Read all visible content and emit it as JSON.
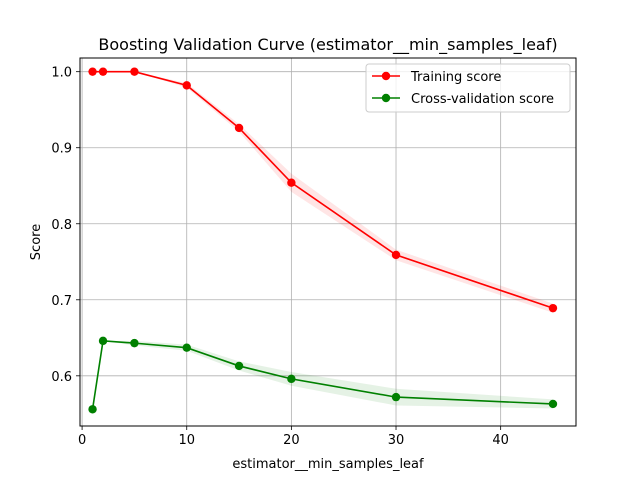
{
  "chart_data": {
    "type": "line",
    "title": "Boosting Validation Curve (estimator__min_samples_leaf)",
    "xlabel": "estimator__min_samples_leaf",
    "ylabel": "Score",
    "xlim": [
      -0.2,
      47.2
    ],
    "ylim": [
      0.534,
      1.018
    ],
    "xticks": [
      0,
      10,
      20,
      30,
      40
    ],
    "yticks": [
      0.6,
      0.7,
      0.8,
      0.9,
      1.0
    ],
    "grid": true,
    "legend_position": "top-right",
    "x": [
      1,
      2,
      5,
      10,
      15,
      20,
      30,
      45
    ],
    "series": [
      {
        "name": "Training score",
        "color": "#ff0000",
        "values": [
          1.0,
          1.0,
          1.0,
          0.982,
          0.926,
          0.854,
          0.759,
          0.689
        ],
        "band": [
          0.0,
          0.0,
          0.0,
          0.003,
          0.005,
          0.012,
          0.007,
          0.006
        ]
      },
      {
        "name": "Cross-validation score",
        "color": "#008000",
        "values": [
          0.556,
          0.646,
          0.643,
          0.637,
          0.613,
          0.596,
          0.572,
          0.563
        ],
        "band": [
          0.0,
          0.0,
          0.003,
          0.004,
          0.006,
          0.009,
          0.011,
          0.006
        ]
      }
    ]
  }
}
